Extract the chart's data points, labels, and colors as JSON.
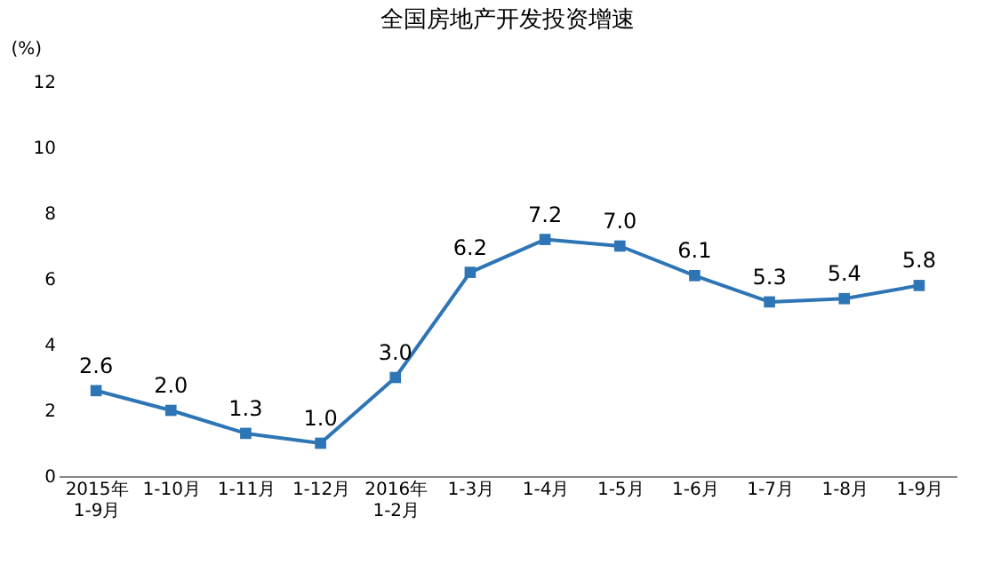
{
  "chart_data": {
    "type": "line",
    "title": "全国房地产开发投资增速",
    "ylabel": "(%)",
    "categories": [
      "2015年\n1-9月",
      "1-10月",
      "1-11月",
      "1-12月",
      "2016年\n1-2月",
      "1-3月",
      "1-4月",
      "1-5月",
      "1-6月",
      "1-7月",
      "1-8月",
      "1-9月"
    ],
    "series": [
      {
        "color": "#2e75b6",
        "values": [
          2.6,
          2.0,
          1.3,
          1.0,
          3.0,
          6.2,
          7.2,
          7.0,
          6.1,
          5.3,
          5.4,
          5.8
        ]
      }
    ],
    "value_labels": [
      "2.6",
      "2.0",
      "1.3",
      "1.0",
      "3.0",
      "6.2",
      "7.2",
      "7.0",
      "6.1",
      "5.3",
      "5.4",
      "5.8"
    ],
    "ylim": [
      0,
      12
    ],
    "yticks": [
      0,
      2,
      4,
      6,
      8,
      10,
      12
    ],
    "grid": false,
    "marker": "square",
    "line_style": "solid"
  }
}
